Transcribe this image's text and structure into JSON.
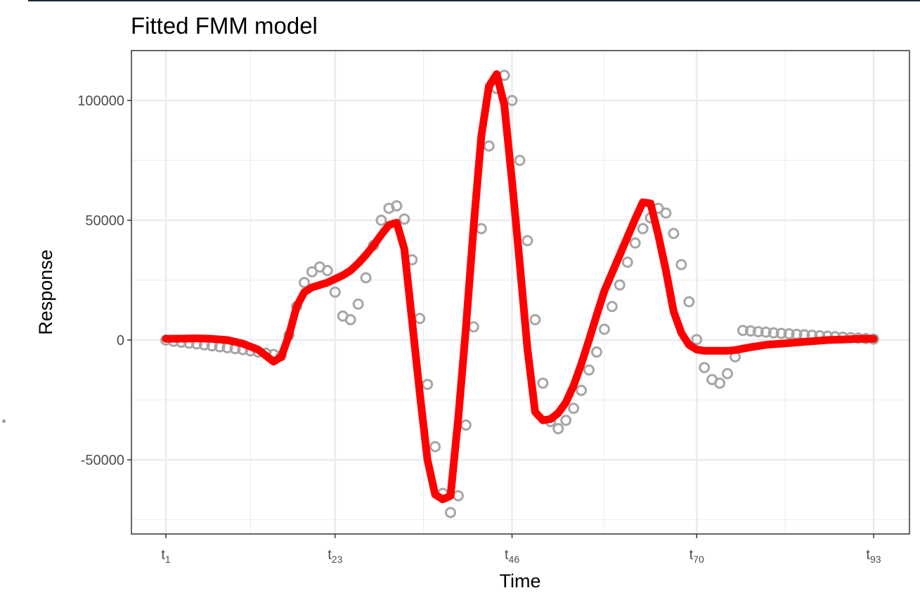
{
  "chart_data": {
    "type": "line",
    "title": "Fitted FMM model",
    "xlabel": "Time",
    "ylabel": "Response",
    "xlim": [
      1,
      93
    ],
    "ylim": [
      -81000,
      121000
    ],
    "yticks": [
      -50000,
      0,
      50000,
      100000
    ],
    "ytick_labels": [
      "-50000",
      "0",
      "50000",
      "100000"
    ],
    "xticks": [
      {
        "x": 1,
        "base": "t",
        "sub": "1"
      },
      {
        "x": 23,
        "base": "t",
        "sub": "23"
      },
      {
        "x": 46,
        "base": "t",
        "sub": "46"
      },
      {
        "x": 70,
        "base": "t",
        "sub": "70"
      },
      {
        "x": 93,
        "base": "t",
        "sub": "93"
      }
    ],
    "grid": true,
    "colors": {
      "observed": "#a6a6a6",
      "fitted": "#ff0000",
      "panel_border": "#333333",
      "grid": "#ebebeb"
    },
    "series": [
      {
        "style": "points",
        "color": "#a6a6a6",
        "x": [
          1,
          2,
          3,
          4,
          5,
          6,
          7,
          8,
          9,
          10,
          11,
          12,
          13,
          14,
          15,
          16,
          17,
          18,
          19,
          20,
          21,
          22,
          23,
          24,
          25,
          26,
          27,
          28,
          29,
          30,
          31,
          32,
          33,
          34,
          35,
          36,
          37,
          38,
          39,
          40,
          41,
          42,
          43,
          44,
          45,
          46,
          47,
          48,
          49,
          50,
          51,
          52,
          53,
          54,
          55,
          56,
          57,
          58,
          59,
          60,
          61,
          62,
          63,
          64,
          65,
          66,
          67,
          68,
          69,
          70,
          71,
          72,
          73,
          74,
          75,
          76,
          77,
          78,
          79,
          80,
          81,
          82,
          83,
          84,
          85,
          86,
          87,
          88,
          89,
          90,
          91,
          92,
          93
        ],
        "y": [
          0,
          -500,
          -900,
          -1300,
          -1600,
          -2000,
          -2400,
          -2800,
          -3200,
          -3600,
          -4000,
          -4500,
          -5000,
          -5500,
          -6000,
          -6500,
          2000,
          14000,
          24000,
          28500,
          30500,
          29000,
          20000,
          10000,
          8500,
          15000,
          26000,
          39500,
          50000,
          55000,
          56000,
          50500,
          33500,
          9000,
          -18500,
          -44500,
          -64000,
          -72000,
          -65000,
          -35500,
          5500,
          46500,
          81000,
          105000,
          110500,
          100000,
          75000,
          41500,
          8500,
          -18000,
          -34000,
          -37000,
          -33500,
          -28500,
          -21000,
          -12500,
          -5000,
          4500,
          14000,
          23000,
          32500,
          40500,
          46500,
          51000,
          55000,
          53000,
          44500,
          31500,
          16000,
          200,
          -11500,
          -16500,
          -18000,
          -14000,
          -7000,
          4000,
          3800,
          3500,
          3300,
          3000,
          2800,
          2600,
          2400,
          2200,
          2000,
          1800,
          1600,
          1400,
          1200,
          1000,
          800,
          600,
          400
        ]
      },
      {
        "style": "line",
        "color": "#ff0000",
        "x": [
          1,
          3,
          5,
          7,
          9,
          11,
          13,
          15,
          16,
          17,
          18,
          19,
          20,
          21,
          22,
          23,
          24,
          25,
          26,
          27,
          28,
          29,
          30,
          31,
          32,
          33,
          34,
          35,
          36,
          37,
          38,
          39,
          40,
          41,
          42,
          43,
          44,
          45,
          46,
          47,
          48,
          49,
          50,
          51,
          52,
          53,
          54,
          55,
          56,
          57,
          58,
          59,
          60,
          61,
          62,
          63,
          64,
          65,
          66,
          67,
          68,
          69,
          70,
          71,
          72,
          73,
          74,
          75,
          77,
          79,
          81,
          83,
          85,
          87,
          89,
          91,
          93
        ],
        "y": [
          500,
          600,
          700,
          500,
          0,
          -1500,
          -4000,
          -9000,
          -7000,
          2000,
          14000,
          20000,
          22000,
          23000,
          24000,
          25500,
          27000,
          29000,
          32000,
          35500,
          39500,
          44000,
          48000,
          49000,
          38000,
          8000,
          -22000,
          -50000,
          -64500,
          -66500,
          -65000,
          -33000,
          5000,
          47000,
          85000,
          106000,
          111000,
          98000,
          66000,
          32000,
          -3500,
          -30000,
          -33500,
          -33000,
          -30500,
          -26000,
          -19000,
          -10000,
          0,
          10500,
          20500,
          28000,
          35500,
          43000,
          50500,
          57500,
          57000,
          44000,
          29000,
          12000,
          3000,
          -2000,
          -4000,
          -4500,
          -4500,
          -4500,
          -4500,
          -4200,
          -3000,
          -2000,
          -1500,
          -1000,
          -500,
          0,
          200,
          500,
          500
        ]
      }
    ]
  }
}
